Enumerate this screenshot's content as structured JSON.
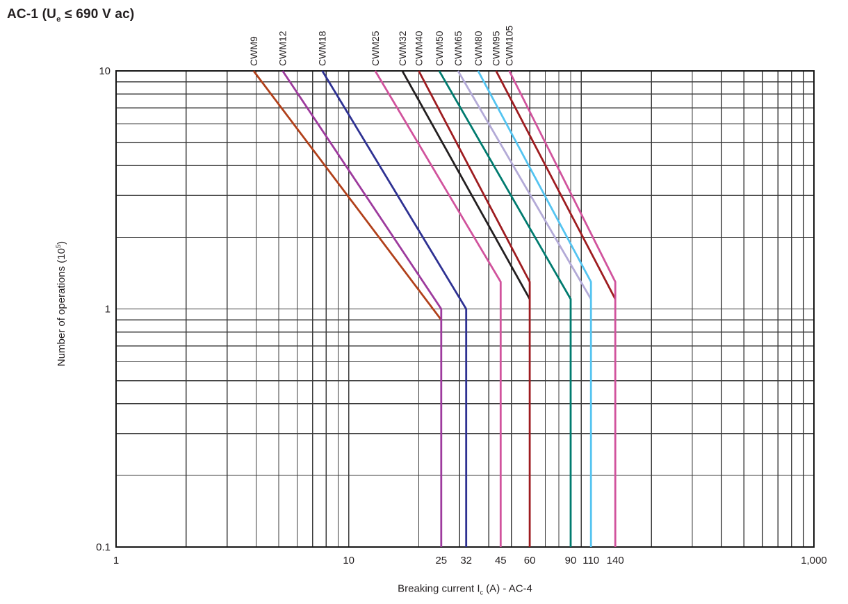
{
  "title": {
    "pre": "AC-1 (U",
    "sub": "e",
    "post": " ≤ 690 V ac)"
  },
  "y_axis_title": {
    "pre": "Number of operations (10",
    "sup": "5",
    "post": ")"
  },
  "x_axis_title": {
    "pre": "Breaking current I",
    "sub": "c",
    "post": " (A) - AC-4"
  },
  "chart_data": {
    "type": "line",
    "title": "AC-1 (Ue ≤ 690 V ac)",
    "xlabel": "Breaking current Ic (A) - AC-4",
    "ylabel": "Number of operations (10^5)",
    "x_scale": "log",
    "y_scale": "log",
    "xlim": [
      1,
      1000
    ],
    "ylim": [
      0.1,
      10
    ],
    "grid": "full log grid with minor decade lines, both axes",
    "grid_color": "#3b3b3b",
    "border_color": "#161616",
    "legend_position": "labels rotated above each curve top",
    "x_ticks": [
      {
        "v": 1,
        "label": "1"
      },
      {
        "v": 10,
        "label": "10"
      },
      {
        "v": 25,
        "label": "25"
      },
      {
        "v": 32,
        "label": "32"
      },
      {
        "v": 45,
        "label": "45"
      },
      {
        "v": 60,
        "label": "60"
      },
      {
        "v": 90,
        "label": "90"
      },
      {
        "v": 110,
        "label": "110"
      },
      {
        "v": 140,
        "label": "140"
      },
      {
        "v": 1000,
        "label": "1,000"
      }
    ],
    "y_ticks": [
      {
        "v": 10,
        "label": "10"
      },
      {
        "v": 1,
        "label": "1"
      },
      {
        "v": 0.1,
        "label": "0.1"
      }
    ],
    "series": [
      {
        "name": "CWM9",
        "color": "#B1401A",
        "points": [
          [
            3.9,
            10
          ],
          [
            25,
            0.9
          ]
        ]
      },
      {
        "name": "CWM12",
        "color": "#9D3A9D",
        "points": [
          [
            5.2,
            10
          ],
          [
            25,
            1.0
          ],
          [
            25,
            0.1
          ]
        ]
      },
      {
        "name": "CWM18",
        "color": "#2E3192",
        "points": [
          [
            7.7,
            10
          ],
          [
            32,
            1.0
          ],
          [
            32,
            0.1
          ]
        ]
      },
      {
        "name": "CWM25",
        "color": "#D1539D",
        "points": [
          [
            13,
            10
          ],
          [
            45,
            1.3
          ],
          [
            45,
            0.1
          ]
        ]
      },
      {
        "name": "CWM32",
        "color": "#231F20",
        "points": [
          [
            17,
            10
          ],
          [
            60,
            1.1
          ]
        ]
      },
      {
        "name": "CWM40",
        "color": "#9E1C20",
        "points": [
          [
            20,
            10
          ],
          [
            60,
            1.3
          ],
          [
            60,
            0.1
          ]
        ]
      },
      {
        "name": "CWM50",
        "color": "#007B6F",
        "points": [
          [
            24.5,
            10
          ],
          [
            90,
            1.1
          ],
          [
            90,
            0.1
          ]
        ]
      },
      {
        "name": "CWM65",
        "color": "#B3AAD7",
        "points": [
          [
            29.5,
            10
          ],
          [
            110,
            1.1
          ]
        ]
      },
      {
        "name": "CWM80",
        "color": "#54C4F1",
        "points": [
          [
            36,
            10
          ],
          [
            110,
            1.3
          ],
          [
            110,
            0.1
          ]
        ]
      },
      {
        "name": "CWM95",
        "color": "#9E1C20",
        "points": [
          [
            43,
            10
          ],
          [
            140,
            1.1
          ]
        ]
      },
      {
        "name": "CWM105",
        "color": "#D1539D",
        "points": [
          [
            49,
            10
          ],
          [
            140,
            1.3
          ],
          [
            140,
            0.1
          ]
        ]
      }
    ]
  }
}
